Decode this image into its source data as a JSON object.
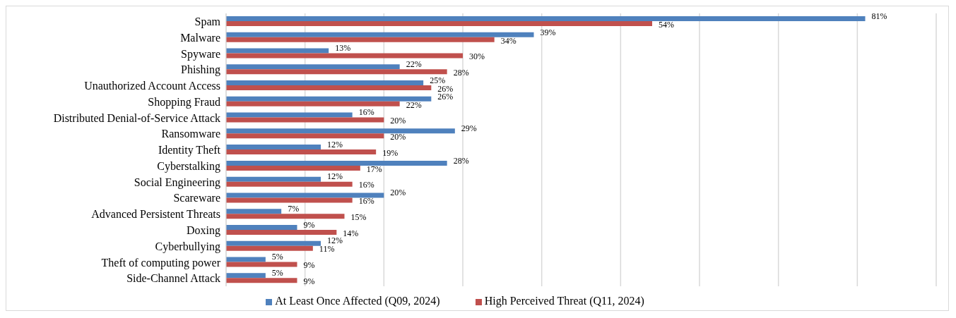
{
  "chart_data": {
    "type": "bar",
    "orientation": "horizontal",
    "categories": [
      "Spam",
      "Malware",
      "Spyware",
      "Phishing",
      "Unauthorized Account Access",
      "Shopping Fraud",
      "Distributed Denial-of-Service Attack",
      "Ransomware",
      "Identity Theft",
      "Cyberstalking",
      "Social Engineering",
      "Scareware",
      "Advanced Persistent Threats",
      "Doxing",
      "Cyberbullying",
      "Theft of computing power",
      "Side-Channel Attack"
    ],
    "series": [
      {
        "name": "At Least Once Affected (Q09, 2024)",
        "color": "#4f81bd",
        "values": [
          81,
          39,
          13,
          22,
          25,
          26,
          16,
          29,
          12,
          28,
          12,
          20,
          7,
          9,
          12,
          5,
          5
        ],
        "value_labels": [
          "81%",
          "39%",
          "13%",
          "22%",
          "25%",
          "26%",
          "16%",
          "29%",
          "12%",
          "28%",
          "12%",
          "20%",
          "7%",
          "9%",
          "12%",
          "5%",
          "5%"
        ]
      },
      {
        "name": "High Perceived Threat (Q11, 2024)",
        "color": "#c0504d",
        "values": [
          54,
          34,
          30,
          28,
          26,
          22,
          20,
          20,
          19,
          17,
          16,
          16,
          15,
          14,
          11,
          9,
          9
        ],
        "value_labels": [
          "54%",
          "34%",
          "30%",
          "28%",
          "26%",
          "22%",
          "20%",
          "20%",
          "19%",
          "17%",
          "16%",
          "16%",
          "15%",
          "14%",
          "11%",
          "9%",
          "9%"
        ]
      }
    ],
    "xlim": [
      0,
      90
    ],
    "xticks": [
      {
        "value": 0,
        "label": null
      },
      {
        "value": 10,
        "label": null
      },
      {
        "value": 20,
        "label": null
      },
      {
        "value": 30,
        "label": null
      },
      {
        "value": 40,
        "label": null
      },
      {
        "value": 50,
        "label": null
      },
      {
        "value": 60,
        "label": null
      },
      {
        "value": 70,
        "label": null
      },
      {
        "value": 80,
        "label": null
      },
      {
        "value": 90,
        "label": null
      }
    ],
    "tick_labels": "y",
    "grid": "x",
    "legend": "bottom"
  }
}
